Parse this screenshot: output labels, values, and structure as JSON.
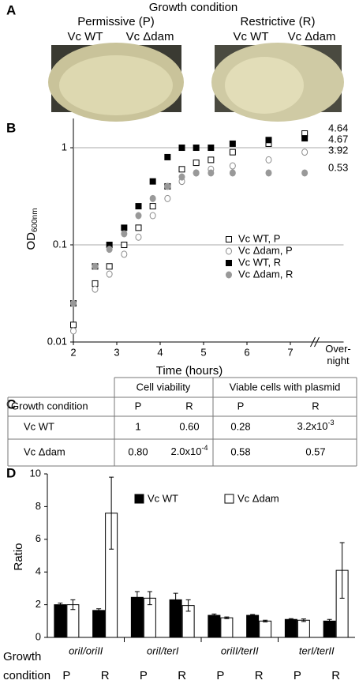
{
  "panel_a": {
    "label": "A",
    "title": "Growth condition",
    "conditions": [
      {
        "name": "Permissive  (P)",
        "strains": [
          "Vc WT",
          "Vc Δdam"
        ]
      },
      {
        "name": "Restrictive  (R)",
        "strains": [
          "Vc WT",
          "Vc Δdam"
        ]
      }
    ]
  },
  "chart_data": [
    {
      "type": "scatter",
      "panel_label": "B",
      "x_label": "Time (hours)",
      "y_label": "OD",
      "y_label_sub": "600nm",
      "log_y": true,
      "grid": true,
      "x": [
        2,
        2.5,
        2.83,
        3.17,
        3.5,
        3.83,
        4.17,
        4.5,
        4.83,
        5.17,
        5.67,
        6.5,
        7.33
      ],
      "xlim": [
        2,
        7.5
      ],
      "xticks": [
        2,
        3,
        4,
        5,
        6,
        7
      ],
      "x_end_label": "Over-night",
      "ylim": [
        0.01,
        2
      ],
      "yticks": [
        0.01,
        0.1,
        1
      ],
      "annotations": [
        "4.64",
        "4.67",
        "3.92",
        "0.53"
      ],
      "series": [
        {
          "name": "Vc WT, P",
          "marker": "square",
          "filled": false,
          "color": "#000000",
          "values": [
            0.015,
            0.04,
            0.06,
            0.1,
            0.15,
            0.25,
            0.4,
            0.6,
            0.7,
            0.75,
            0.9,
            1.1,
            1.4
          ]
        },
        {
          "name": "Vc Δdam, P",
          "marker": "circle",
          "filled": false,
          "color": "#8c8c8c",
          "values": [
            0.013,
            0.035,
            0.05,
            0.08,
            0.12,
            0.2,
            0.3,
            0.45,
            0.55,
            0.6,
            0.65,
            0.75,
            0.9
          ]
        },
        {
          "name": "Vc WT, R",
          "marker": "square",
          "filled": true,
          "color": "#000000",
          "values": [
            0.025,
            0.06,
            0.1,
            0.15,
            0.25,
            0.45,
            0.8,
            1.0,
            1.0,
            1.0,
            1.1,
            1.2,
            1.25
          ]
        },
        {
          "name": "Vc Δdam, R",
          "marker": "circle",
          "filled": true,
          "color": "#999999",
          "values": [
            0.025,
            0.06,
            0.09,
            0.13,
            0.2,
            0.3,
            0.4,
            0.5,
            0.55,
            0.55,
            0.55,
            0.55,
            0.55
          ]
        }
      ]
    },
    {
      "type": "bar",
      "panel_label": "D",
      "y_label": "Ratio",
      "x_label": "Growth condition",
      "groups": [
        "oriI/oriII",
        "oriI/terI",
        "oriII/terII",
        "terI/terII"
      ],
      "categories": [
        "P",
        "R",
        "P",
        "R",
        "P",
        "R",
        "P",
        "R"
      ],
      "ylim": [
        0,
        10
      ],
      "yticks": [
        0,
        2,
        4,
        6,
        8,
        10
      ],
      "series": [
        {
          "name": "Vc WT",
          "color": "#000000",
          "values": [
            2.0,
            1.65,
            2.45,
            2.3,
            1.35,
            1.35,
            1.1,
            1.0
          ],
          "errors": [
            0.1,
            0.1,
            0.35,
            0.4,
            0.08,
            0.05,
            0.05,
            0.1
          ]
        },
        {
          "name": "Vc Δdam",
          "color": "#ffffff",
          "values": [
            2.0,
            7.6,
            2.4,
            1.95,
            1.2,
            1.0,
            1.05,
            4.1
          ],
          "errors": [
            0.3,
            2.2,
            0.4,
            0.35,
            0.05,
            0.05,
            0.08,
            1.7
          ]
        }
      ]
    }
  ],
  "panel_c": {
    "label": "C",
    "header": [
      "Cell viability",
      "Viable cells with plasmid"
    ],
    "subheader": [
      "Growth condition",
      "P",
      "R",
      "P",
      "R"
    ],
    "rows": [
      [
        "Vc WT",
        "1",
        "0.60",
        "0.28",
        {
          "text": "3.2x10",
          "sup": "-3"
        }
      ],
      [
        "Vc Δdam",
        "0.80",
        {
          "text": "2.0x10",
          "sup": "-4"
        },
        "0.58",
        "0.57"
      ]
    ]
  }
}
